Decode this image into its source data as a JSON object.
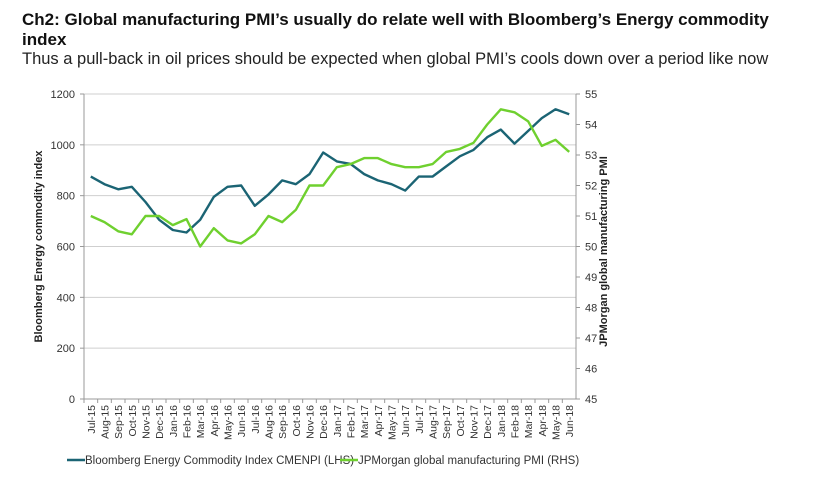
{
  "title": "Ch2: Global manufacturing PMI’s usually do relate well with Bloomberg’s Energy commodity index",
  "subtitle": "Thus a pull-back in oil prices should be expected when global PMI’s cools down over a period like now",
  "chart_data": {
    "type": "line",
    "categories": [
      "Jul-15",
      "Aug-15",
      "Sep-15",
      "Oct-15",
      "Nov-15",
      "Dec-15",
      "Jan-16",
      "Feb-16",
      "Mar-16",
      "Apr-16",
      "May-16",
      "Jun-16",
      "Jul-16",
      "Aug-16",
      "Sep-16",
      "Oct-16",
      "Nov-16",
      "Dec-16",
      "Jan-17",
      "Feb-17",
      "Mar-17",
      "Apr-17",
      "May-17",
      "Jun-17",
      "Jul-17",
      "Aug-17",
      "Sep-17",
      "Oct-17",
      "Nov-17",
      "Dec-17",
      "Jan-18",
      "Feb-18",
      "Mar-18",
      "Apr-18",
      "May-18",
      "Jun-18"
    ],
    "series": [
      {
        "name": "Bloomberg Energy Commodity Index CMENPI (LHS)",
        "axis": "left",
        "color": "#1b6474",
        "values": [
          875,
          845,
          825,
          835,
          775,
          705,
          665,
          655,
          705,
          795,
          835,
          840,
          760,
          805,
          860,
          845,
          885,
          970,
          935,
          925,
          885,
          860,
          845,
          820,
          875,
          875,
          915,
          955,
          980,
          1030,
          1060,
          1005,
          1055,
          1105,
          1140,
          1120
        ]
      },
      {
        "name": "JPMorgan global manufacturing PMI (RHS)",
        "axis": "right",
        "color": "#6fd02f",
        "values": [
          51.0,
          50.8,
          50.5,
          50.4,
          51.0,
          51.0,
          50.7,
          50.9,
          50.0,
          50.6,
          50.2,
          50.1,
          50.4,
          51.0,
          50.8,
          51.2,
          52.0,
          52.0,
          52.6,
          52.7,
          52.9,
          52.9,
          52.7,
          52.6,
          52.6,
          52.7,
          53.1,
          53.2,
          53.4,
          54.0,
          54.5,
          54.4,
          54.1,
          53.3,
          53.5,
          53.1
        ]
      }
    ],
    "ylabel": "Bloomberg Energy commodity index",
    "ylabel_right": "JPMorgan global manufacturing PMI",
    "ylim": [
      0,
      1200
    ],
    "yticks": [
      0,
      200,
      400,
      600,
      800,
      1000,
      1200
    ],
    "ylim_right": [
      45,
      55
    ],
    "yticks_right": [
      45,
      46,
      47,
      48,
      49,
      50,
      51,
      52,
      53,
      54,
      55
    ],
    "grid": true,
    "legend": "bottom"
  }
}
